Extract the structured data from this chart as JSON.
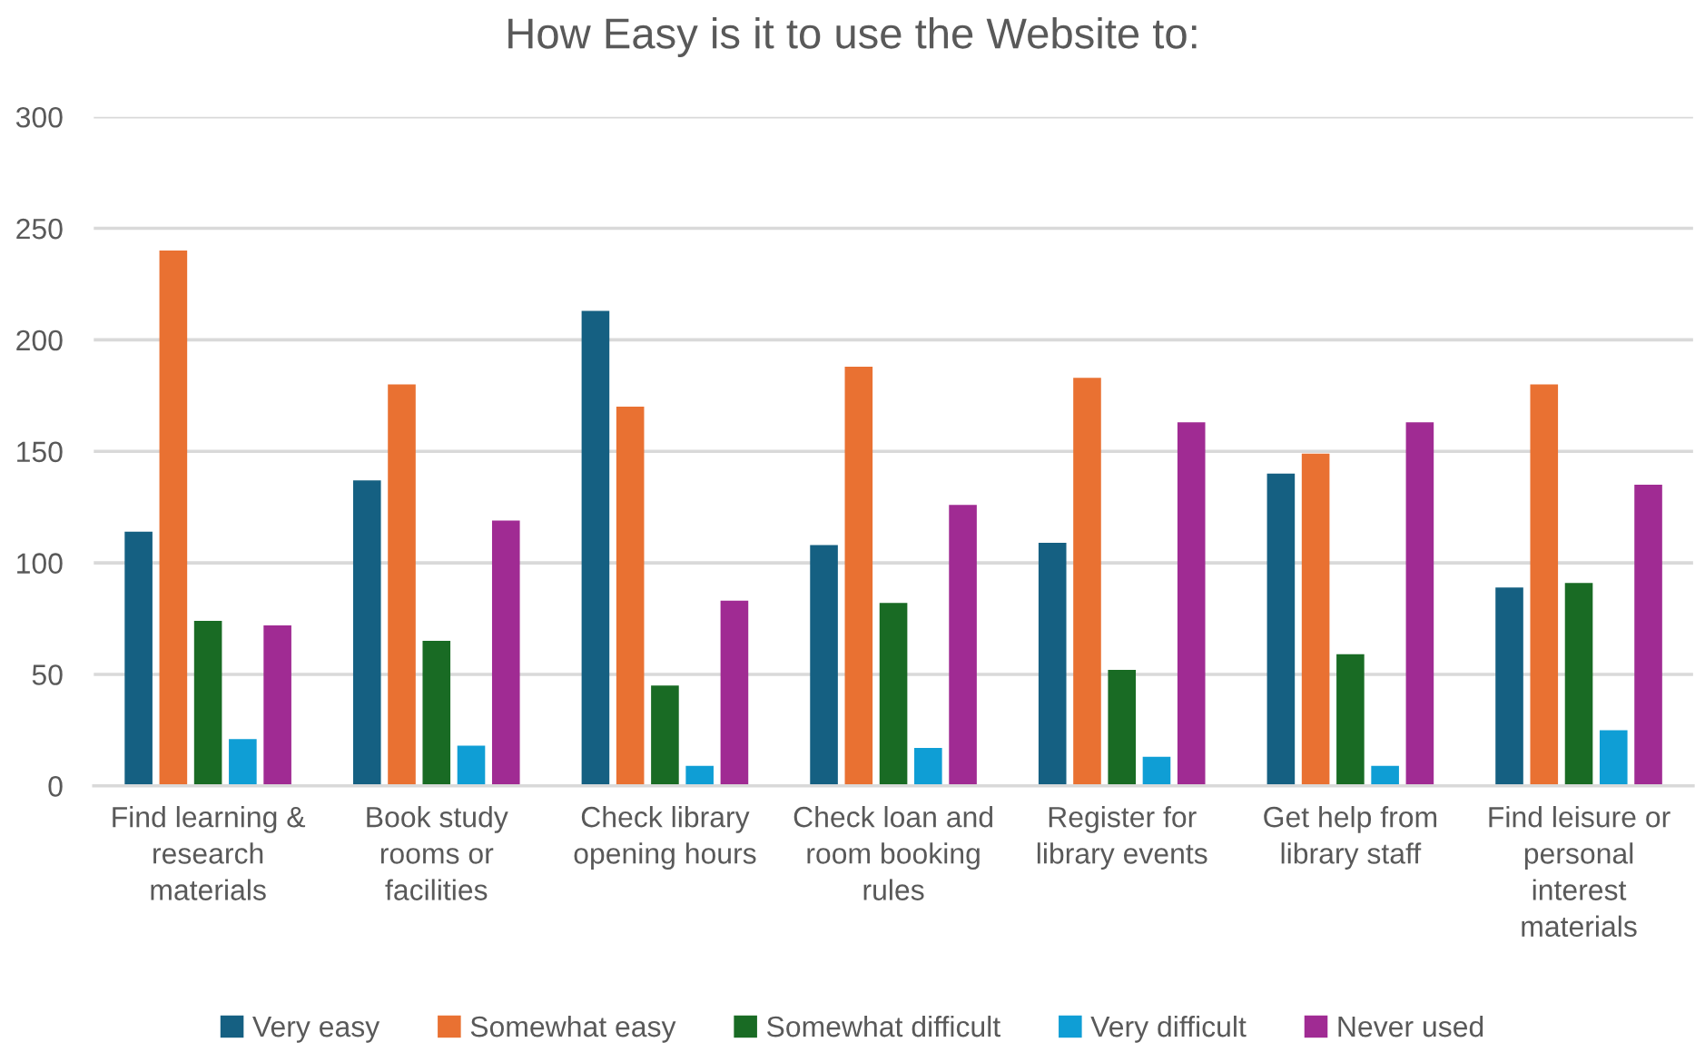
{
  "chart_data": {
    "type": "bar",
    "title": "How Easy is it to use the Website to:",
    "categories": [
      "Find learning & research materials",
      "Book study rooms or facilities",
      "Check library opening hours",
      "Check loan and room booking rules",
      "Register for library events",
      "Get help from library staff",
      "Find leisure or personal interest materials"
    ],
    "series": [
      {
        "name": "Very easy",
        "color": "#156082",
        "values": [
          114,
          137,
          213,
          108,
          109,
          140,
          89
        ]
      },
      {
        "name": "Somewhat easy",
        "color": "#e97132",
        "values": [
          240,
          180,
          170,
          188,
          183,
          149,
          180
        ]
      },
      {
        "name": "Somewhat difficult",
        "color": "#196b24",
        "values": [
          74,
          65,
          45,
          82,
          52,
          59,
          91
        ]
      },
      {
        "name": "Very difficult",
        "color": "#0f9ed5",
        "values": [
          21,
          18,
          9,
          17,
          13,
          9,
          25
        ]
      },
      {
        "name": "Never used",
        "color": "#a02b93",
        "values": [
          72,
          119,
          83,
          126,
          163,
          163,
          135
        ]
      }
    ],
    "ylim": [
      0,
      300
    ],
    "yticks": [
      0,
      50,
      100,
      150,
      200,
      250,
      300
    ],
    "grid": "y",
    "legend": "bottom"
  }
}
